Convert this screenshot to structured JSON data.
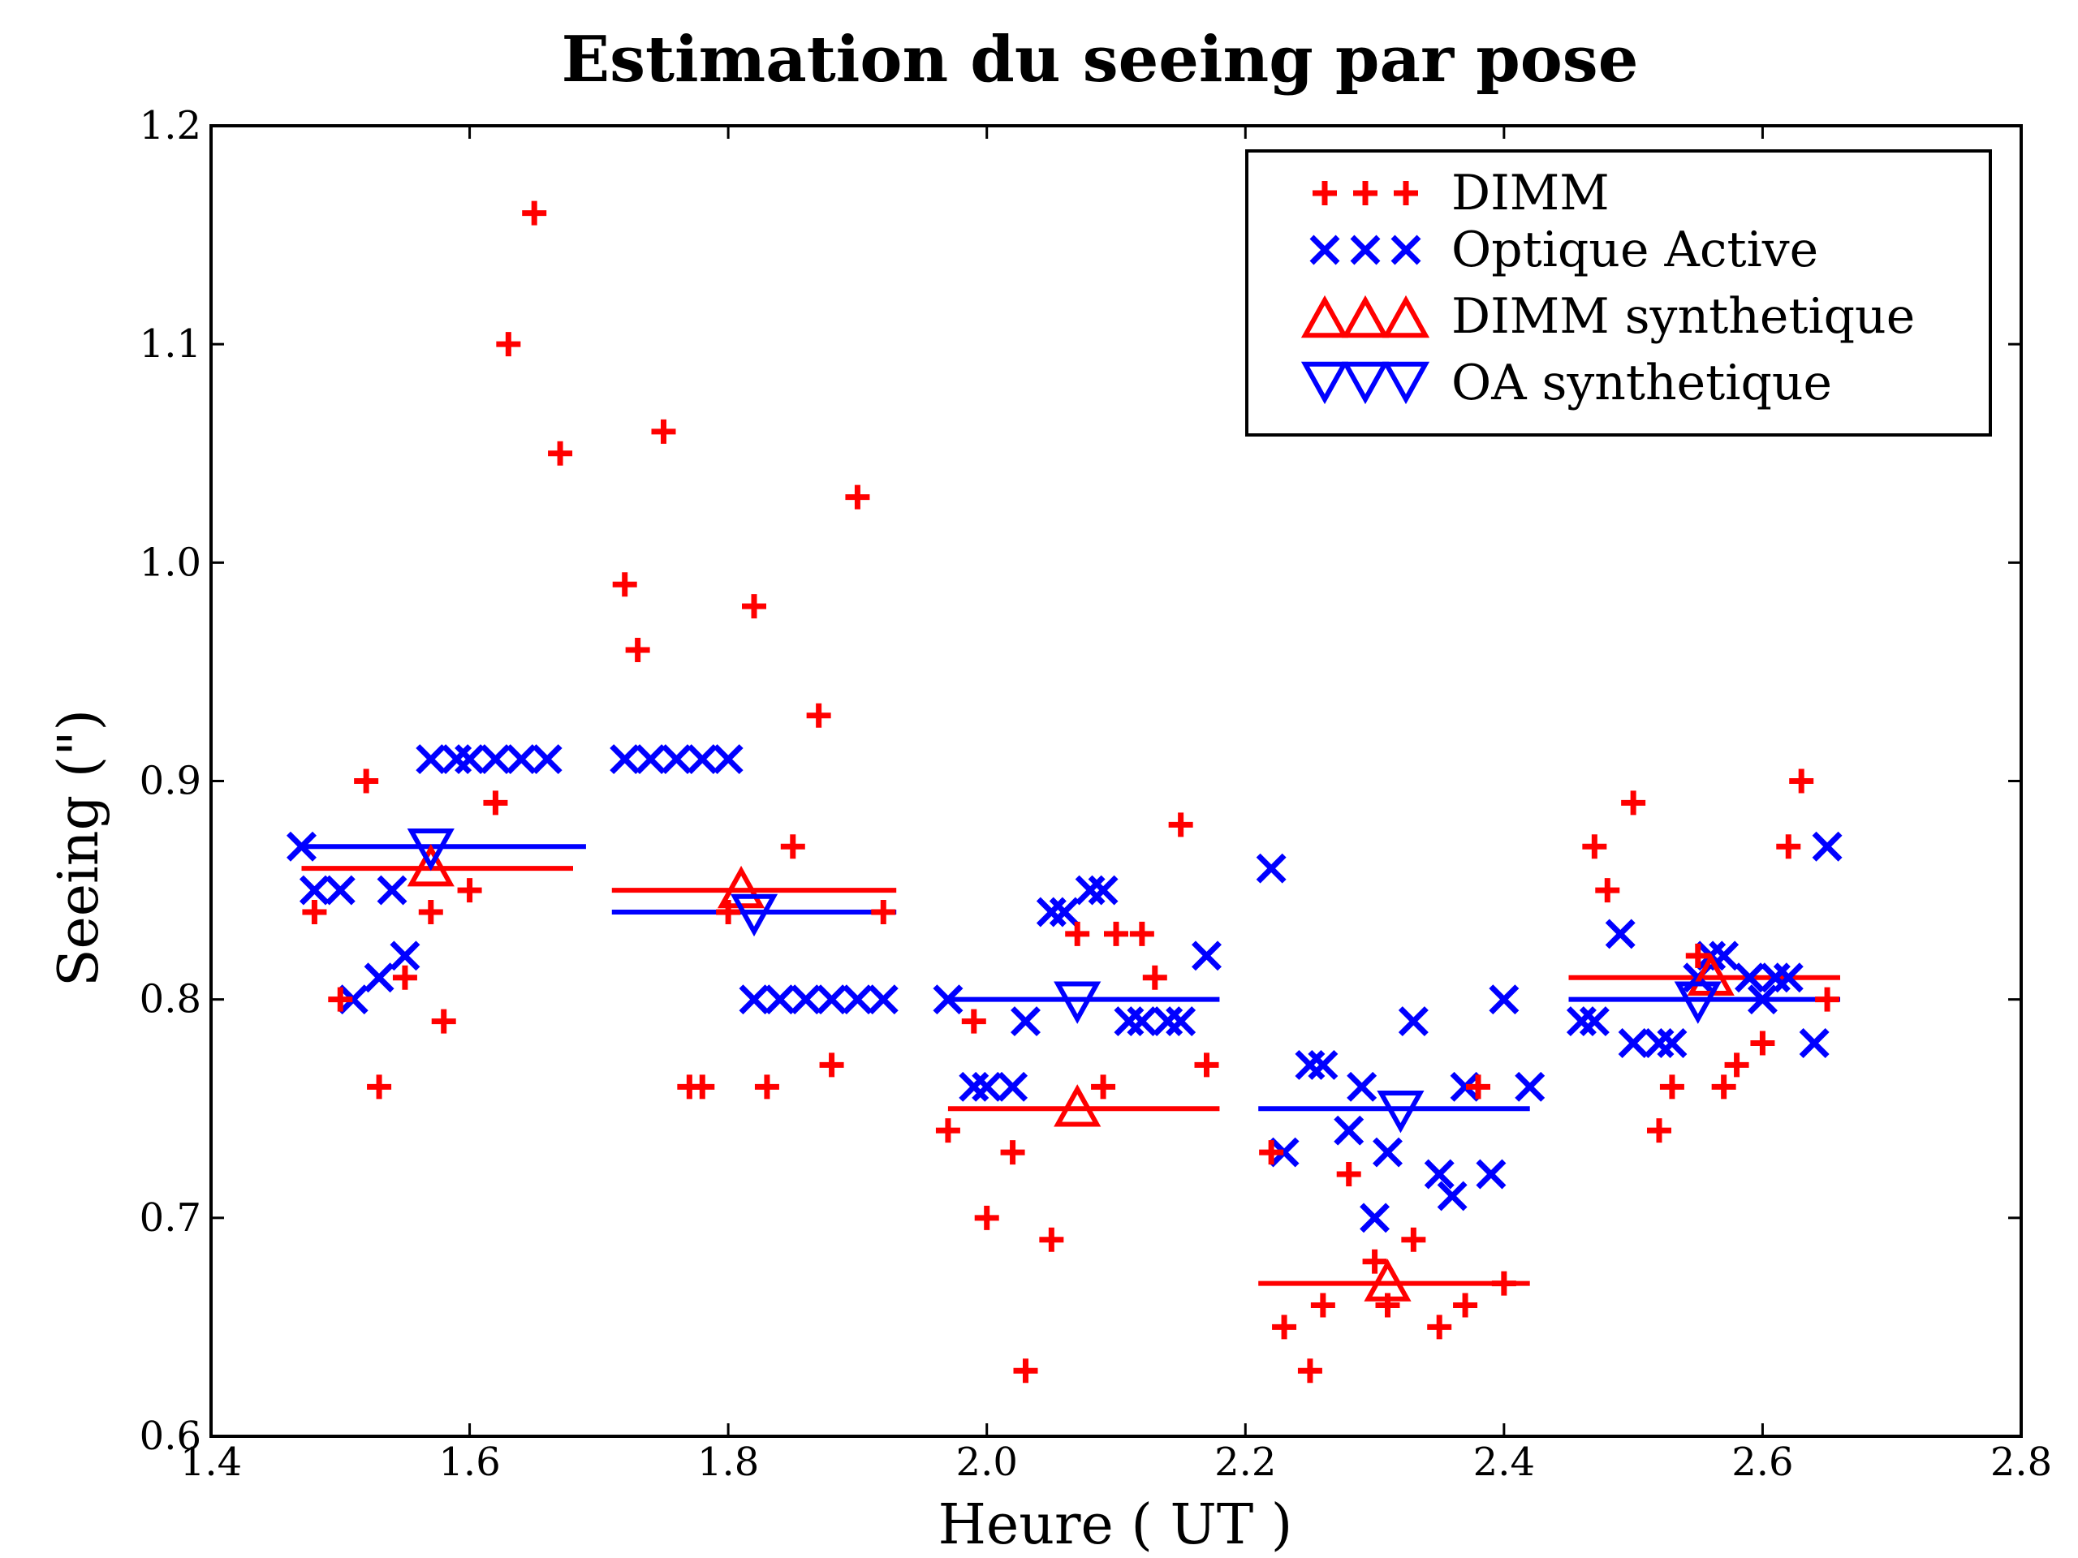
{
  "chart_data": {
    "type": "scatter",
    "title": "Estimation du seeing par pose",
    "xlabel": "Heure ( UT )",
    "ylabel": "Seeing (\")",
    "xlim": [
      1.4,
      2.8
    ],
    "ylim": [
      0.6,
      1.2
    ],
    "xticks": [
      "1.4",
      "1.6",
      "1.8",
      "2.0",
      "2.2",
      "2.4",
      "2.6",
      "2.8"
    ],
    "yticks": [
      "0.6",
      "0.7",
      "0.8",
      "0.9",
      "1.0",
      "1.1",
      "1.2"
    ],
    "legend_position": "top-right",
    "colors": {
      "red": "#ff0000",
      "blue": "#0000ff"
    },
    "series": [
      {
        "name": "DIMM",
        "marker": "plus",
        "color": "#ff0000",
        "points": [
          [
            1.48,
            0.84
          ],
          [
            1.5,
            0.8
          ],
          [
            1.52,
            0.9
          ],
          [
            1.53,
            0.76
          ],
          [
            1.55,
            0.81
          ],
          [
            1.57,
            0.84
          ],
          [
            1.58,
            0.79
          ],
          [
            1.6,
            0.85
          ],
          [
            1.62,
            0.89
          ],
          [
            1.63,
            1.1
          ],
          [
            1.65,
            1.16
          ],
          [
            1.67,
            1.05
          ],
          [
            1.72,
            0.99
          ],
          [
            1.73,
            0.96
          ],
          [
            1.75,
            1.06
          ],
          [
            1.77,
            0.76
          ],
          [
            1.78,
            0.76
          ],
          [
            1.8,
            0.84
          ],
          [
            1.82,
            0.98
          ],
          [
            1.83,
            0.76
          ],
          [
            1.85,
            0.87
          ],
          [
            1.87,
            0.93
          ],
          [
            1.88,
            0.77
          ],
          [
            1.9,
            1.03
          ],
          [
            1.92,
            0.84
          ],
          [
            1.97,
            0.74
          ],
          [
            1.99,
            0.79
          ],
          [
            2.0,
            0.7
          ],
          [
            2.02,
            0.73
          ],
          [
            2.03,
            0.63
          ],
          [
            2.05,
            0.69
          ],
          [
            2.07,
            0.83
          ],
          [
            2.09,
            0.76
          ],
          [
            2.1,
            0.83
          ],
          [
            2.12,
            0.83
          ],
          [
            2.13,
            0.81
          ],
          [
            2.15,
            0.88
          ],
          [
            2.17,
            0.77
          ],
          [
            2.22,
            0.73
          ],
          [
            2.23,
            0.65
          ],
          [
            2.25,
            0.63
          ],
          [
            2.26,
            0.66
          ],
          [
            2.28,
            0.72
          ],
          [
            2.3,
            0.68
          ],
          [
            2.31,
            0.66
          ],
          [
            2.33,
            0.69
          ],
          [
            2.35,
            0.65
          ],
          [
            2.37,
            0.66
          ],
          [
            2.38,
            0.76
          ],
          [
            2.4,
            0.67
          ],
          [
            2.47,
            0.87
          ],
          [
            2.48,
            0.85
          ],
          [
            2.5,
            0.89
          ],
          [
            2.52,
            0.74
          ],
          [
            2.53,
            0.76
          ],
          [
            2.55,
            0.82
          ],
          [
            2.57,
            0.76
          ],
          [
            2.58,
            0.77
          ],
          [
            2.6,
            0.78
          ],
          [
            2.62,
            0.87
          ],
          [
            2.63,
            0.9
          ],
          [
            2.65,
            0.8
          ]
        ]
      },
      {
        "name": "Optique Active",
        "marker": "x",
        "color": "#0000ff",
        "points": [
          [
            1.47,
            0.87
          ],
          [
            1.48,
            0.85
          ],
          [
            1.5,
            0.85
          ],
          [
            1.51,
            0.8
          ],
          [
            1.53,
            0.81
          ],
          [
            1.54,
            0.85
          ],
          [
            1.55,
            0.82
          ],
          [
            1.57,
            0.91
          ],
          [
            1.59,
            0.91
          ],
          [
            1.6,
            0.91
          ],
          [
            1.62,
            0.91
          ],
          [
            1.64,
            0.91
          ],
          [
            1.66,
            0.91
          ],
          [
            1.72,
            0.91
          ],
          [
            1.74,
            0.91
          ],
          [
            1.76,
            0.91
          ],
          [
            1.78,
            0.91
          ],
          [
            1.8,
            0.91
          ],
          [
            1.82,
            0.8
          ],
          [
            1.84,
            0.8
          ],
          [
            1.86,
            0.8
          ],
          [
            1.88,
            0.8
          ],
          [
            1.9,
            0.8
          ],
          [
            1.92,
            0.8
          ],
          [
            1.97,
            0.8
          ],
          [
            1.99,
            0.76
          ],
          [
            2.0,
            0.76
          ],
          [
            2.02,
            0.76
          ],
          [
            2.03,
            0.79
          ],
          [
            2.05,
            0.84
          ],
          [
            2.06,
            0.84
          ],
          [
            2.08,
            0.85
          ],
          [
            2.09,
            0.85
          ],
          [
            2.11,
            0.79
          ],
          [
            2.12,
            0.79
          ],
          [
            2.14,
            0.79
          ],
          [
            2.15,
            0.79
          ],
          [
            2.17,
            0.82
          ],
          [
            2.22,
            0.86
          ],
          [
            2.23,
            0.73
          ],
          [
            2.25,
            0.77
          ],
          [
            2.26,
            0.77
          ],
          [
            2.28,
            0.74
          ],
          [
            2.29,
            0.76
          ],
          [
            2.3,
            0.7
          ],
          [
            2.31,
            0.73
          ],
          [
            2.33,
            0.79
          ],
          [
            2.35,
            0.72
          ],
          [
            2.36,
            0.71
          ],
          [
            2.37,
            0.76
          ],
          [
            2.39,
            0.72
          ],
          [
            2.4,
            0.8
          ],
          [
            2.42,
            0.76
          ],
          [
            2.46,
            0.79
          ],
          [
            2.47,
            0.79
          ],
          [
            2.49,
            0.83
          ],
          [
            2.5,
            0.78
          ],
          [
            2.52,
            0.78
          ],
          [
            2.53,
            0.78
          ],
          [
            2.55,
            0.81
          ],
          [
            2.56,
            0.82
          ],
          [
            2.57,
            0.82
          ],
          [
            2.59,
            0.81
          ],
          [
            2.6,
            0.8
          ],
          [
            2.61,
            0.81
          ],
          [
            2.62,
            0.81
          ],
          [
            2.64,
            0.78
          ],
          [
            2.65,
            0.87
          ]
        ]
      },
      {
        "name": "DIMM synthetique",
        "marker": "triangle-up",
        "color": "#ff0000",
        "points": [
          [
            1.57,
            0.86
          ],
          [
            1.81,
            0.85
          ],
          [
            2.07,
            0.75
          ],
          [
            2.31,
            0.67
          ],
          [
            2.56,
            0.81
          ]
        ],
        "segments": [
          [
            1.47,
            1.68,
            0.86
          ],
          [
            1.71,
            1.93,
            0.85
          ],
          [
            1.97,
            2.18,
            0.75
          ],
          [
            2.21,
            2.42,
            0.67
          ],
          [
            2.45,
            2.66,
            0.81
          ]
        ]
      },
      {
        "name": "OA synthetique",
        "marker": "triangle-down",
        "color": "#0000ff",
        "points": [
          [
            1.57,
            0.87
          ],
          [
            1.82,
            0.84
          ],
          [
            2.07,
            0.8
          ],
          [
            2.32,
            0.75
          ],
          [
            2.55,
            0.8
          ]
        ],
        "segments": [
          [
            1.47,
            1.69
          ],
          [
            1.71,
            1.93
          ],
          [
            1.97,
            2.18
          ],
          [
            2.21,
            2.42
          ],
          [
            2.45,
            2.66
          ]
        ],
        "segment_values": [
          0.87,
          0.84,
          0.8,
          0.75,
          0.8
        ]
      }
    ]
  }
}
